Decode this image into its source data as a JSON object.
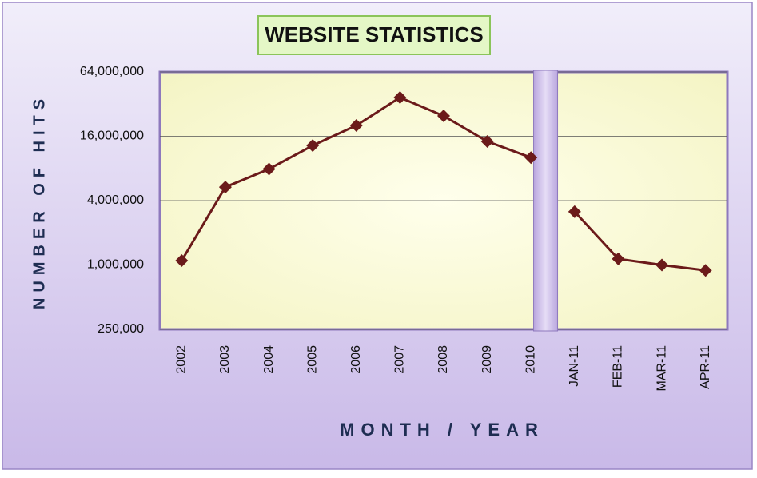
{
  "chart_data": {
    "type": "line",
    "title": "WEBSITE STATISTICS",
    "x_label": "MONTH / YEAR",
    "y_label": "NUMBER OF HITS",
    "categories": [
      "2002",
      "2003",
      "2004",
      "2005",
      "2006",
      "2007",
      "2008",
      "2009",
      "2010",
      "JAN-11",
      "FEB-11",
      "MAR-11",
      "APR-11"
    ],
    "values": [
      1100000,
      5350000,
      7900000,
      13100000,
      20200000,
      36900000,
      24800000,
      14300000,
      10100000,
      3150000,
      1140000,
      1000000,
      890000
    ],
    "color": "#6b1a1a",
    "log_scale": true,
    "panel_break": 9,
    "ylim": [
      250000,
      64000000
    ],
    "yticks": [
      {
        "value": 250000,
        "label": "250,000"
      },
      {
        "value": 1000000,
        "label": "1,000,000"
      },
      {
        "value": 4000000,
        "label": "4,000,000"
      },
      {
        "value": 16000000,
        "label": "16,000,000"
      },
      {
        "value": 64000000,
        "label": "64,000,000"
      }
    ],
    "grid": true
  }
}
